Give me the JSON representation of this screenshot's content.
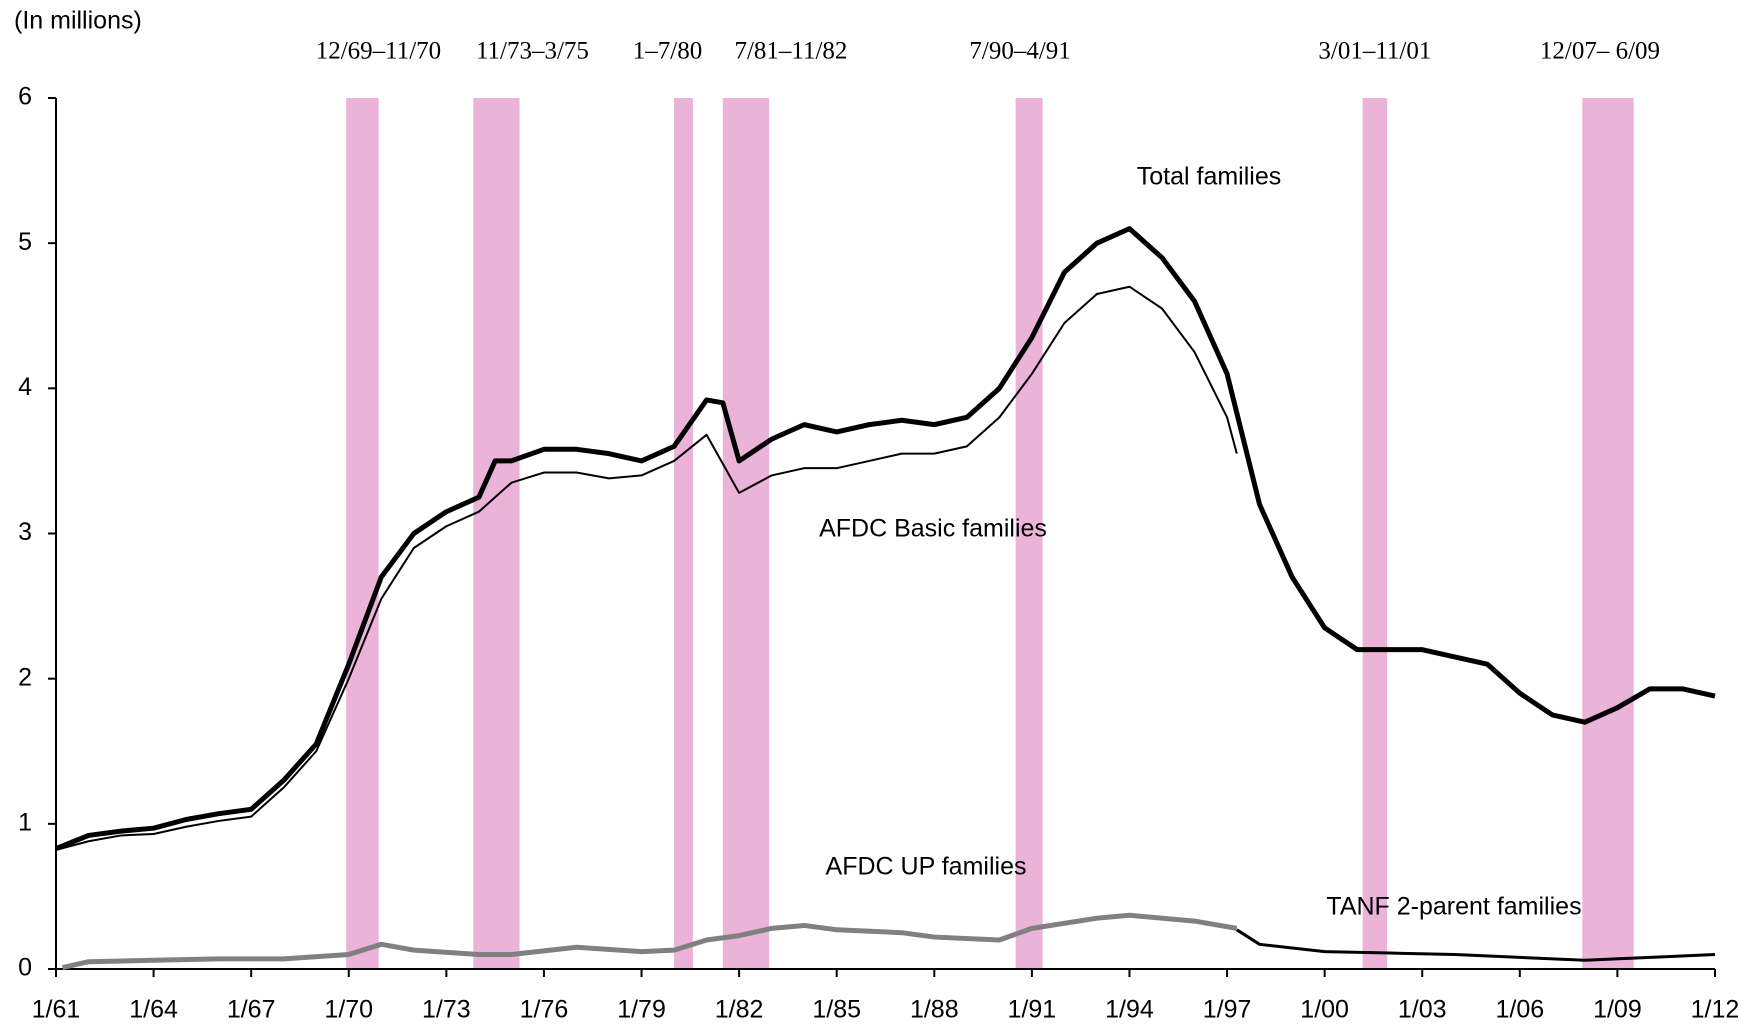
{
  "chart_data": {
    "type": "line",
    "ylabel": "(In millions)",
    "xlim": [
      1961,
      2012
    ],
    "xticks": [
      {
        "value": 1961,
        "label": "1/61"
      },
      {
        "value": 1964,
        "label": "1/64"
      },
      {
        "value": 1967,
        "label": "1/67"
      },
      {
        "value": 1970,
        "label": "1/70"
      },
      {
        "value": 1973,
        "label": "1/73"
      },
      {
        "value": 1976,
        "label": "1/76"
      },
      {
        "value": 1979,
        "label": "1/79"
      },
      {
        "value": 1982,
        "label": "1/82"
      },
      {
        "value": 1985,
        "label": "1/85"
      },
      {
        "value": 1988,
        "label": "1/88"
      },
      {
        "value": 1991,
        "label": "1/91"
      },
      {
        "value": 1994,
        "label": "1/94"
      },
      {
        "value": 1997,
        "label": "1/97"
      },
      {
        "value": 2000,
        "label": "1/00"
      },
      {
        "value": 2003,
        "label": "1/03"
      },
      {
        "value": 2006,
        "label": "1/06"
      },
      {
        "value": 2009,
        "label": "1/09"
      },
      {
        "value": 2012,
        "label": "1/12"
      }
    ],
    "ylim": [
      0,
      6
    ],
    "yticks": [
      0,
      1,
      2,
      3,
      4,
      5,
      6
    ],
    "recession_color": "#ecb3d9",
    "recessions": [
      {
        "label": "12/69–11/70",
        "start": 1969.92,
        "end": 1970.92
      },
      {
        "label": "11/73–3/75",
        "start": 1973.83,
        "end": 1975.25
      },
      {
        "label": "1–7/80",
        "start": 1980.0,
        "end": 1980.58
      },
      {
        "label": "7/81–11/82",
        "start": 1981.5,
        "end": 1982.92
      },
      {
        "label": "7/90–4/91",
        "start": 1990.5,
        "end": 1991.33
      },
      {
        "label": "3/01–11/01",
        "start": 2001.17,
        "end": 2001.92
      },
      {
        "label": "12/07– 6/09",
        "start": 2007.92,
        "end": 2009.5
      }
    ],
    "series": [
      {
        "name": "Total families",
        "color": "#000000",
        "width": 5,
        "x": [
          1961,
          1962,
          1963,
          1964,
          1965,
          1966,
          1967,
          1968,
          1969,
          1970,
          1970.5,
          1971,
          1972,
          1973,
          1974,
          1974.5,
          1975,
          1976,
          1977,
          1978,
          1979,
          1980,
          1981,
          1981.5,
          1982,
          1983,
          1984,
          1985,
          1986,
          1987,
          1988,
          1989,
          1990,
          1991,
          1992,
          1993,
          1994,
          1995,
          1996,
          1997,
          1998,
          1999,
          2000,
          2001,
          2002,
          2003,
          2004,
          2005,
          2006,
          2007,
          2008,
          2009,
          2010,
          2011,
          2012
        ],
        "values": [
          0.83,
          0.92,
          0.95,
          0.97,
          1.03,
          1.07,
          1.1,
          1.3,
          1.55,
          2.1,
          2.4,
          2.7,
          3.0,
          3.15,
          3.25,
          3.5,
          3.5,
          3.58,
          3.58,
          3.55,
          3.5,
          3.6,
          3.92,
          3.9,
          3.5,
          3.65,
          3.75,
          3.7,
          3.75,
          3.78,
          3.75,
          3.8,
          4.0,
          4.35,
          4.8,
          5.0,
          5.1,
          4.9,
          4.6,
          4.1,
          3.2,
          2.7,
          2.35,
          2.2,
          2.2,
          2.2,
          2.15,
          2.1,
          1.9,
          1.75,
          1.7,
          1.8,
          1.93,
          1.93,
          1.88
        ]
      },
      {
        "name": "AFDC Basic families",
        "color": "#000000",
        "width": 2,
        "x": [
          1961,
          1962,
          1963,
          1964,
          1965,
          1966,
          1967,
          1968,
          1969,
          1970,
          1971,
          1972,
          1973,
          1974,
          1975,
          1976,
          1977,
          1978,
          1979,
          1980,
          1981,
          1982,
          1983,
          1984,
          1985,
          1986,
          1987,
          1988,
          1989,
          1990,
          1991,
          1992,
          1993,
          1994,
          1995,
          1996,
          1997,
          1997.3
        ],
        "values": [
          0.82,
          0.88,
          0.92,
          0.93,
          0.98,
          1.02,
          1.05,
          1.25,
          1.5,
          2.0,
          2.55,
          2.9,
          3.05,
          3.15,
          3.35,
          3.42,
          3.42,
          3.38,
          3.4,
          3.5,
          3.68,
          3.28,
          3.4,
          3.45,
          3.45,
          3.5,
          3.55,
          3.55,
          3.6,
          3.8,
          4.1,
          4.45,
          4.65,
          4.7,
          4.55,
          4.25,
          3.8,
          3.55
        ]
      },
      {
        "name": "AFDC UP families",
        "color": "#808080",
        "width": 5,
        "x": [
          1961.2,
          1962,
          1964,
          1966,
          1968,
          1970,
          1971,
          1972,
          1974,
          1975,
          1977,
          1979,
          1980,
          1981,
          1982,
          1983,
          1984,
          1985,
          1987,
          1988,
          1990,
          1991,
          1993,
          1994,
          1996,
          1997.3
        ],
        "values": [
          0.01,
          0.05,
          0.06,
          0.07,
          0.07,
          0.1,
          0.17,
          0.13,
          0.1,
          0.1,
          0.15,
          0.12,
          0.13,
          0.2,
          0.23,
          0.28,
          0.3,
          0.27,
          0.25,
          0.22,
          0.2,
          0.28,
          0.35,
          0.37,
          0.33,
          0.28
        ]
      },
      {
        "name": "TANF 2-parent families",
        "color": "#000000",
        "width": 3,
        "x": [
          1997.3,
          1998,
          2000,
          2002,
          2004,
          2006,
          2008,
          2010,
          2012
        ],
        "values": [
          0.27,
          0.17,
          0.12,
          0.11,
          0.1,
          0.08,
          0.06,
          0.08,
          0.1
        ]
      }
    ]
  }
}
